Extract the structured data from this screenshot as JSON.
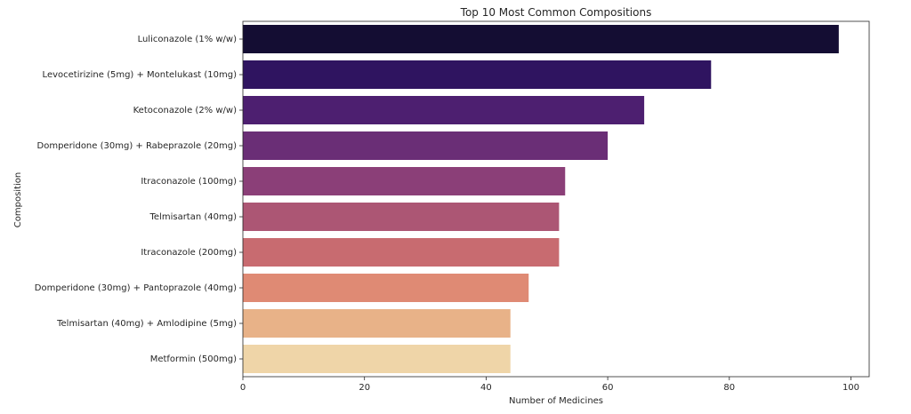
{
  "chart_data": {
    "type": "bar",
    "orientation": "horizontal",
    "title": "Top 10 Most Common Compositions",
    "xlabel": "Number of Medicines",
    "ylabel": "Composition",
    "xlim": [
      0,
      103
    ],
    "xticks": [
      0,
      20,
      40,
      60,
      80,
      100
    ],
    "grid": false,
    "legend": "none",
    "categories": [
      "Luliconazole (1% w/w)",
      "Levocetirizine (5mg) + Montelukast (10mg)",
      "Ketoconazole (2% w/w)",
      "Domperidone (30mg) + Rabeprazole (20mg)",
      "Itraconazole (100mg)",
      "Telmisartan (40mg)",
      "Itraconazole (200mg)",
      "Domperidone (30mg) + Pantoprazole (40mg)",
      "Telmisartan (40mg) + Amlodipine (5mg)",
      "Metformin (500mg)"
    ],
    "values": [
      98,
      77,
      66,
      60,
      53,
      52,
      52,
      47,
      44,
      44
    ],
    "colors": [
      "#140d33",
      "#2f1460",
      "#4d1f70",
      "#6a2e76",
      "#8b3f78",
      "#ac5674",
      "#c86b70",
      "#df8a74",
      "#e8b288",
      "#efd5a8"
    ]
  }
}
